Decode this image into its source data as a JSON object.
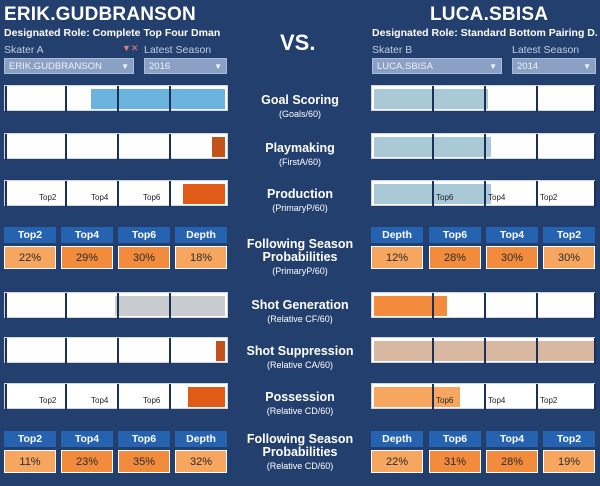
{
  "skater_a": {
    "name": "ERIK.GUDBRANSON",
    "role": "Designated Role: Complete Top Four Dman",
    "skater_label": "Skater A",
    "season_label": "Latest Season",
    "skater_value": "ERIK.GUDBRANSON",
    "season_value": "2016"
  },
  "skater_b": {
    "name": "LUCA.SBISA",
    "role": "Designated Role: Standard Bottom Pairing D..",
    "skater_label": "Skater B",
    "season_label": "Latest Season",
    "skater_value": "LUCA.SBISA",
    "season_value": "2014"
  },
  "vs_text": "VS.",
  "tick_labels": {
    "t2": "Top2",
    "t4": "Top4",
    "t6": "Top6"
  },
  "metrics": {
    "goal_scoring": {
      "title": "Goal Scoring",
      "sub": "(Goals/60)",
      "a_fill": 0.61,
      "b_fill": 0.52,
      "a_color": "#6cb4e0",
      "b_color": "#a9c9d6"
    },
    "playmaking": {
      "title": "Playmaking",
      "sub": "(FirstA/60)",
      "a_fill": 0.06,
      "b_fill": 0.53,
      "a_color": "#c0521a",
      "b_color": "#a9c9d6"
    },
    "production": {
      "title": "Production",
      "sub": "(PrimaryP/60)",
      "a_fill": 0.19,
      "b_fill": 0.53,
      "a_color": "#e05a18",
      "b_color": "#a9c9d6"
    },
    "shot_generation": {
      "title": "Shot Generation",
      "sub": "(Relative CF/60)",
      "a_fill": 0.5,
      "b_fill": 0.33,
      "a_color": "#c9ccce",
      "b_color": "#f28c3c"
    },
    "shot_suppression": {
      "title": "Shot Suppression",
      "sub": "(Relative CA/60)",
      "a_fill": 0.04,
      "b_fill": 1.0,
      "a_color": "#c0521a",
      "b_color": "#d9b8a2"
    },
    "possession": {
      "title": "Possession",
      "sub": "(Relative CD/60)",
      "a_fill": 0.17,
      "b_fill": 0.39,
      "a_color": "#e05a18",
      "b_color": "#f6a65e"
    }
  },
  "probs1": {
    "title": "Following Season Probabilities",
    "sub": "(PrimaryP/60)",
    "a": {
      "headers": [
        "Top2",
        "Top4",
        "Top6",
        "Depth"
      ],
      "values": [
        "22%",
        "29%",
        "30%",
        "18%"
      ]
    },
    "b": {
      "headers": [
        "Depth",
        "Top6",
        "Top4",
        "Top2"
      ],
      "values": [
        "12%",
        "28%",
        "30%",
        "30%"
      ]
    }
  },
  "probs2": {
    "title": "Following Season Probabilities",
    "sub": "(Relative CD/60)",
    "a": {
      "headers": [
        "Top2",
        "Top4",
        "Top6",
        "Depth"
      ],
      "values": [
        "11%",
        "23%",
        "35%",
        "32%"
      ]
    },
    "b": {
      "headers": [
        "Depth",
        "Top6",
        "Top4",
        "Top2"
      ],
      "values": [
        "22%",
        "31%",
        "28%",
        "19%"
      ]
    }
  },
  "colors": {
    "background": "#233f6e",
    "header_blue": "#2563b0",
    "cell_orange": "#f6a65e",
    "cell_orange_dark": "#f28c3c"
  }
}
